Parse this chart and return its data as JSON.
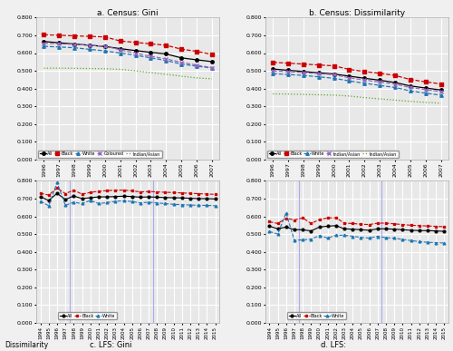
{
  "census_years": [
    1996,
    1997,
    1998,
    1999,
    2000,
    2001,
    2002,
    2003,
    2004,
    2005,
    2006,
    2007
  ],
  "census_gini": {
    "All": [
      0.665,
      0.658,
      0.651,
      0.644,
      0.637,
      0.625,
      0.614,
      0.604,
      0.595,
      0.573,
      0.562,
      0.552
    ],
    "Black": [
      0.703,
      0.7,
      0.697,
      0.694,
      0.691,
      0.668,
      0.66,
      0.652,
      0.644,
      0.622,
      0.61,
      0.592
    ],
    "White": [
      0.638,
      0.634,
      0.63,
      0.621,
      0.612,
      0.6,
      0.588,
      0.573,
      0.558,
      0.538,
      0.526,
      0.516
    ],
    "Coloured": [
      0.655,
      0.652,
      0.649,
      0.644,
      0.639,
      0.618,
      0.6,
      0.582,
      0.567,
      0.548,
      0.532,
      0.518
    ],
    "Indian/Asian": [
      0.515,
      0.515,
      0.514,
      0.513,
      0.512,
      0.508,
      0.5,
      0.49,
      0.48,
      0.47,
      0.46,
      0.455
    ]
  },
  "census_dissimilarity": {
    "All": [
      0.51,
      0.503,
      0.496,
      0.489,
      0.482,
      0.47,
      0.458,
      0.447,
      0.434,
      0.415,
      0.403,
      0.392
    ],
    "Black": [
      0.548,
      0.543,
      0.538,
      0.533,
      0.528,
      0.508,
      0.496,
      0.486,
      0.474,
      0.451,
      0.438,
      0.426
    ],
    "White": [
      0.484,
      0.479,
      0.474,
      0.466,
      0.458,
      0.443,
      0.43,
      0.418,
      0.406,
      0.387,
      0.374,
      0.363
    ],
    "Coloured": [
      0.5,
      0.495,
      0.49,
      0.484,
      0.478,
      0.461,
      0.448,
      0.437,
      0.425,
      0.406,
      0.394,
      0.383
    ],
    "Indian/Asian": [
      0.37,
      0.369,
      0.367,
      0.365,
      0.363,
      0.358,
      0.349,
      0.342,
      0.335,
      0.328,
      0.322,
      0.318
    ]
  },
  "lfs_years": [
    1994,
    1995,
    1996,
    1997,
    1998,
    1999,
    2000,
    2001,
    2002,
    2003,
    2004,
    2005,
    2006,
    2007,
    2008,
    2009,
    2010,
    2011,
    2012,
    2013,
    2014,
    2015
  ],
  "lfs_gini": {
    "All": [
      0.71,
      0.69,
      0.73,
      0.695,
      0.715,
      0.7,
      0.705,
      0.71,
      0.71,
      0.712,
      0.714,
      0.712,
      0.708,
      0.71,
      0.708,
      0.706,
      0.705,
      0.704,
      0.702,
      0.7,
      0.7,
      0.698
    ],
    "Black": [
      0.73,
      0.72,
      0.76,
      0.728,
      0.748,
      0.725,
      0.735,
      0.742,
      0.745,
      0.748,
      0.748,
      0.744,
      0.738,
      0.74,
      0.738,
      0.736,
      0.734,
      0.732,
      0.73,
      0.728,
      0.726,
      0.724
    ],
    "White": [
      0.685,
      0.66,
      0.79,
      0.662,
      0.68,
      0.672,
      0.69,
      0.672,
      0.678,
      0.685,
      0.688,
      0.684,
      0.676,
      0.68,
      0.676,
      0.672,
      0.668,
      0.666,
      0.664,
      0.662,
      0.662,
      0.66
    ]
  },
  "lfs_dissimilarity": {
    "All": [
      0.545,
      0.53,
      0.54,
      0.525,
      0.525,
      0.518,
      0.54,
      0.545,
      0.548,
      0.53,
      0.528,
      0.525,
      0.522,
      0.53,
      0.53,
      0.528,
      0.525,
      0.522,
      0.52,
      0.52,
      0.518,
      0.516
    ],
    "Black": [
      0.57,
      0.56,
      0.59,
      0.58,
      0.592,
      0.56,
      0.582,
      0.592,
      0.592,
      0.562,
      0.56,
      0.556,
      0.554,
      0.562,
      0.562,
      0.558,
      0.554,
      0.55,
      0.548,
      0.546,
      0.544,
      0.542
    ],
    "White": [
      0.515,
      0.5,
      0.62,
      0.465,
      0.468,
      0.472,
      0.492,
      0.478,
      0.494,
      0.494,
      0.488,
      0.482,
      0.478,
      0.488,
      0.48,
      0.478,
      0.47,
      0.464,
      0.458,
      0.454,
      0.452,
      0.45
    ]
  },
  "colors": {
    "All": "#000000",
    "Black": "#cc0000",
    "White": "#1f77b4",
    "Coloured": "#9467bd",
    "Indian/Asian": "#5ca832"
  },
  "bg_color": "#e8e8e8",
  "grid_color": "#ffffff",
  "vline_color": "#aaaaee"
}
